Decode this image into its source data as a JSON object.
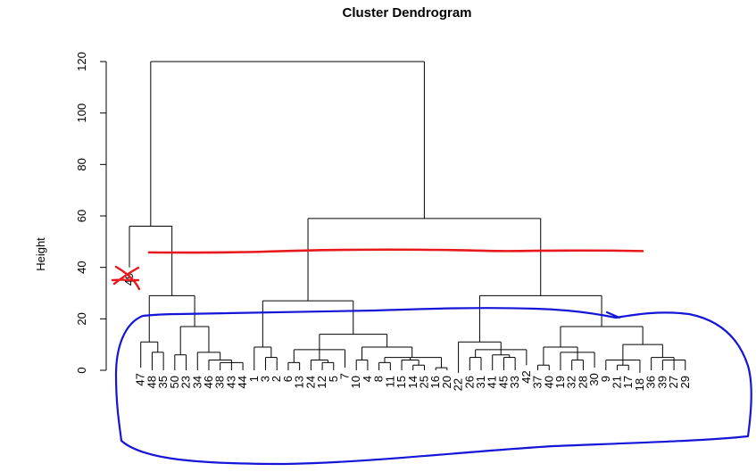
{
  "chart_data": {
    "type": "dendrogram",
    "title": "Cluster Dendrogram",
    "ylabel": "Height",
    "ylim": [
      0,
      120
    ],
    "yticks": [
      0,
      20,
      40,
      60,
      80,
      100,
      120
    ],
    "leaves": [
      "49",
      "47",
      "48",
      "35",
      "50",
      "23",
      "34",
      "46",
      "38",
      "43",
      "44",
      "1",
      "3",
      "2",
      "6",
      "13",
      "24",
      "12",
      "5",
      "7",
      "10",
      "4",
      "8",
      "11",
      "15",
      "14",
      "25",
      "16",
      "20",
      "22",
      "26",
      "31",
      "41",
      "45",
      "33",
      "42",
      "37",
      "40",
      "19",
      "32",
      "28",
      "30",
      "9",
      "21",
      "17",
      "18",
      "36",
      "39",
      "27",
      "29"
    ],
    "annotations": {
      "red_line_height": 46,
      "red_line_color": "#e8191c",
      "circle_color": "#1515d8",
      "cross_color": "#e8191c",
      "crossed_leaf": "49"
    },
    "tree": {
      "h": 120,
      "c": [
        {
          "h": 56,
          "c": [
            {
              "l": "49",
              "t": 40
            },
            {
              "h": 29,
              "c": [
                {
                  "h": 11,
                  "c": [
                    {
                      "l": "47",
                      "t": 1
                    },
                    {
                      "h": 7,
                      "c": [
                        {
                          "l": "48"
                        },
                        {
                          "l": "35"
                        }
                      ]
                    }
                  ]
                },
                {
                  "h": 17,
                  "c": [
                    {
                      "h": 6,
                      "c": [
                        {
                          "l": "50"
                        },
                        {
                          "l": "23"
                        }
                      ]
                    },
                    {
                      "h": 7,
                      "c": [
                        {
                          "l": "34"
                        },
                        {
                          "h": 4,
                          "c": [
                            {
                              "l": "46"
                            },
                            {
                              "h": 3,
                              "c": [
                                {
                                  "l": "38"
                                },
                                {
                                  "l": "43"
                                },
                                {
                                  "l": "44"
                                }
                              ]
                            }
                          ]
                        }
                      ]
                    }
                  ]
                }
              ]
            }
          ]
        },
        {
          "h": 59,
          "c": [
            {
              "h": 27,
              "c": [
                {
                  "h": 9,
                  "c": [
                    {
                      "l": "1"
                    },
                    {
                      "h": 5,
                      "c": [
                        {
                          "l": "3"
                        },
                        {
                          "l": "2"
                        }
                      ]
                    }
                  ]
                },
                {
                  "h": 14,
                  "c": [
                    {
                      "h": 8,
                      "c": [
                        {
                          "h": 3,
                          "c": [
                            {
                              "l": "6"
                            },
                            {
                              "l": "13"
                            }
                          ]
                        },
                        {
                          "h": 4,
                          "c": [
                            {
                              "l": "24"
                            },
                            {
                              "h": 3,
                              "c": [
                                {
                                  "l": "12"
                                },
                                {
                                  "l": "5"
                                }
                              ]
                            }
                          ]
                        },
                        {
                          "l": "7",
                          "t": 1
                        }
                      ]
                    },
                    {
                      "h": 9,
                      "c": [
                        {
                          "h": 4,
                          "c": [
                            {
                              "l": "10"
                            },
                            {
                              "l": "4"
                            }
                          ]
                        },
                        {
                          "h": 5,
                          "c": [
                            {
                              "h": 3,
                              "c": [
                                {
                                  "l": "8"
                                },
                                {
                                  "l": "11"
                                }
                              ]
                            },
                            {
                              "h": 4,
                              "c": [
                                {
                                  "l": "15"
                                },
                                {
                                  "h": 2,
                                  "c": [
                                    {
                                      "l": "14"
                                    },
                                    {
                                      "l": "25"
                                    }
                                  ]
                                }
                              ]
                            },
                            {
                              "h": 1,
                              "c": [
                                {
                                  "l": "16"
                                },
                                {
                                  "l": "20"
                                }
                              ]
                            }
                          ]
                        }
                      ]
                    }
                  ]
                }
              ]
            },
            {
              "h": 29,
              "c": [
                {
                  "h": 11,
                  "c": [
                    {
                      "l": "22",
                      "t": -1
                    },
                    {
                      "h": 8,
                      "c": [
                        {
                          "h": 5,
                          "c": [
                            {
                              "l": "26"
                            },
                            {
                              "l": "31"
                            }
                          ]
                        },
                        {
                          "h": 6,
                          "c": [
                            {
                              "l": "41"
                            },
                            {
                              "h": 5,
                              "c": [
                                {
                                  "l": "45"
                                },
                                {
                                  "l": "33"
                                }
                              ]
                            }
                          ]
                        },
                        {
                          "l": "42",
                          "t": 2
                        }
                      ]
                    }
                  ]
                },
                {
                  "h": 17,
                  "c": [
                    {
                      "h": 9,
                      "c": [
                        {
                          "h": 2,
                          "c": [
                            {
                              "l": "37"
                            },
                            {
                              "l": "40"
                            }
                          ]
                        },
                        {
                          "h": 7,
                          "c": [
                            {
                              "l": "19"
                            },
                            {
                              "h": 4,
                              "c": [
                                {
                                  "l": "32"
                                },
                                {
                                  "l": "28"
                                }
                              ]
                            },
                            {
                              "l": "30",
                              "t": 1
                            }
                          ]
                        }
                      ]
                    },
                    {
                      "h": 10,
                      "c": [
                        {
                          "h": 4,
                          "c": [
                            {
                              "l": "9"
                            },
                            {
                              "h": 2,
                              "c": [
                                {
                                  "l": "21"
                                },
                                {
                                  "l": "17"
                                }
                              ]
                            },
                            {
                              "l": "18",
                              "t": -1
                            }
                          ]
                        },
                        {
                          "h": 5,
                          "c": [
                            {
                              "l": "36"
                            },
                            {
                              "h": 4,
                              "c": [
                                {
                                  "l": "39"
                                },
                                {
                                  "l": "27"
                                },
                                {
                                  "l": "29"
                                }
                              ]
                            }
                          ]
                        }
                      ]
                    }
                  ]
                }
              ]
            }
          ]
        }
      ]
    }
  }
}
